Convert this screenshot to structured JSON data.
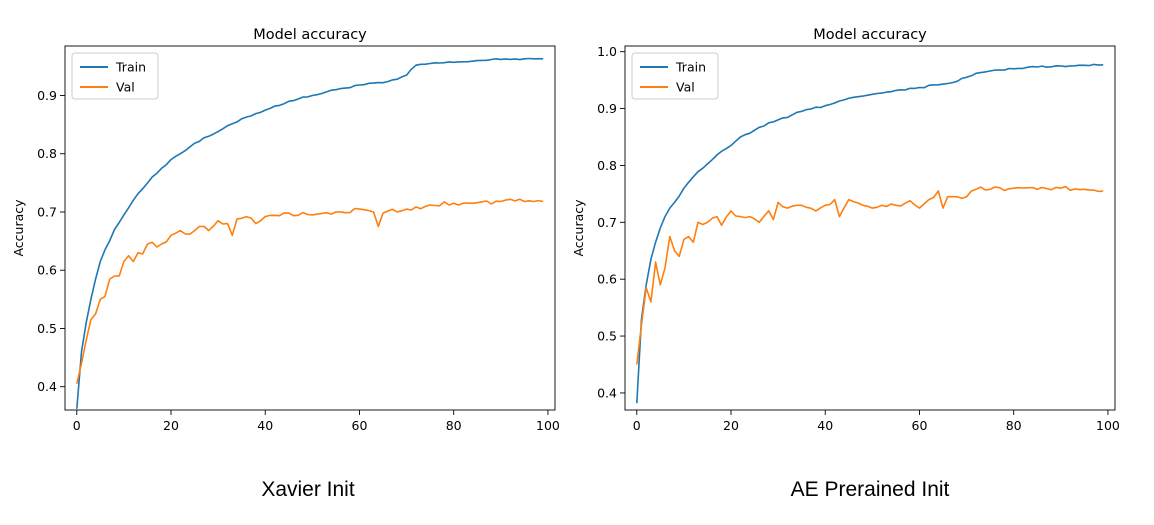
{
  "chart_data": [
    {
      "type": "line",
      "title": "Model accuracy",
      "xlabel": "",
      "ylabel": "Accuracy",
      "xlim": [
        -2.5,
        101.5
      ],
      "ylim": [
        0.36,
        0.985
      ],
      "xticks": [
        0,
        20,
        40,
        60,
        80,
        100
      ],
      "yticks": [
        0.4,
        0.5,
        0.6,
        0.7,
        0.8,
        0.9
      ],
      "grid": false,
      "legend": "top-left",
      "caption": "Xavier Init",
      "series": [
        {
          "name": "Train",
          "color": "#1f77b4",
          "anchors": [
            [
              0,
              0.362
            ],
            [
              1,
              0.46
            ],
            [
              2,
              0.51
            ],
            [
              3,
              0.55
            ],
            [
              4,
              0.585
            ],
            [
              5,
              0.615
            ],
            [
              6,
              0.635
            ],
            [
              8,
              0.67
            ],
            [
              10,
              0.695
            ],
            [
              12,
              0.72
            ],
            [
              14,
              0.74
            ],
            [
              16,
              0.76
            ],
            [
              18,
              0.775
            ],
            [
              20,
              0.79
            ],
            [
              22,
              0.8
            ],
            [
              25,
              0.818
            ],
            [
              28,
              0.83
            ],
            [
              30,
              0.838
            ],
            [
              35,
              0.86
            ],
            [
              40,
              0.875
            ],
            [
              45,
              0.89
            ],
            [
              50,
              0.9
            ],
            [
              55,
              0.91
            ],
            [
              60,
              0.918
            ],
            [
              65,
              0.922
            ],
            [
              68,
              0.928
            ],
            [
              70,
              0.935
            ],
            [
              72,
              0.952
            ],
            [
              75,
              0.955
            ],
            [
              80,
              0.957
            ],
            [
              85,
              0.96
            ],
            [
              90,
              0.962
            ],
            [
              95,
              0.963
            ],
            [
              99,
              0.963
            ]
          ]
        },
        {
          "name": "Val",
          "color": "#ff7f0e",
          "anchors": [
            [
              0,
              0.405
            ],
            [
              1,
              0.44
            ],
            [
              2,
              0.48
            ],
            [
              3,
              0.515
            ],
            [
              4,
              0.525
            ],
            [
              5,
              0.55
            ],
            [
              6,
              0.555
            ],
            [
              7,
              0.585
            ],
            [
              8,
              0.59
            ],
            [
              9,
              0.59
            ],
            [
              10,
              0.615
            ],
            [
              11,
              0.625
            ],
            [
              12,
              0.615
            ],
            [
              13,
              0.63
            ],
            [
              14,
              0.628
            ],
            [
              15,
              0.645
            ],
            [
              16,
              0.648
            ],
            [
              17,
              0.64
            ],
            [
              18,
              0.645
            ],
            [
              20,
              0.66
            ],
            [
              22,
              0.668
            ],
            [
              24,
              0.662
            ],
            [
              26,
              0.675
            ],
            [
              28,
              0.668
            ],
            [
              30,
              0.685
            ],
            [
              32,
              0.68
            ],
            [
              33,
              0.66
            ],
            [
              34,
              0.688
            ],
            [
              36,
              0.692
            ],
            [
              38,
              0.68
            ],
            [
              40,
              0.692
            ],
            [
              45,
              0.698
            ],
            [
              50,
              0.695
            ],
            [
              55,
              0.7
            ],
            [
              60,
              0.705
            ],
            [
              63,
              0.7
            ],
            [
              64,
              0.675
            ],
            [
              65,
              0.698
            ],
            [
              70,
              0.705
            ],
            [
              75,
              0.712
            ],
            [
              80,
              0.715
            ],
            [
              85,
              0.716
            ],
            [
              90,
              0.718
            ],
            [
              95,
              0.718
            ],
            [
              99,
              0.718
            ]
          ]
        }
      ]
    },
    {
      "type": "line",
      "title": "Model accuracy",
      "xlabel": "",
      "ylabel": "Accuracy",
      "xlim": [
        -2.5,
        101.5
      ],
      "ylim": [
        0.37,
        1.01
      ],
      "xticks": [
        0,
        20,
        40,
        60,
        80,
        100
      ],
      "yticks": [
        0.4,
        0.5,
        0.6,
        0.7,
        0.8,
        0.9,
        1.0
      ],
      "ytick_labels": [
        "0.4",
        "0.5",
        "0.6",
        "0.7",
        "0.8",
        "0.9",
        "1.0"
      ],
      "grid": false,
      "legend": "top-left",
      "caption": "AE Prerained Init",
      "series": [
        {
          "name": "Train",
          "color": "#1f77b4",
          "anchors": [
            [
              0,
              0.382
            ],
            [
              1,
              0.53
            ],
            [
              2,
              0.59
            ],
            [
              3,
              0.635
            ],
            [
              4,
              0.665
            ],
            [
              5,
              0.69
            ],
            [
              6,
              0.71
            ],
            [
              7,
              0.725
            ],
            [
              8,
              0.735
            ],
            [
              10,
              0.76
            ],
            [
              12,
              0.78
            ],
            [
              14,
              0.795
            ],
            [
              16,
              0.81
            ],
            [
              18,
              0.825
            ],
            [
              20,
              0.835
            ],
            [
              22,
              0.85
            ],
            [
              25,
              0.862
            ],
            [
              28,
              0.875
            ],
            [
              30,
              0.88
            ],
            [
              35,
              0.895
            ],
            [
              40,
              0.905
            ],
            [
              45,
              0.918
            ],
            [
              50,
              0.925
            ],
            [
              55,
              0.932
            ],
            [
              60,
              0.937
            ],
            [
              65,
              0.943
            ],
            [
              68,
              0.948
            ],
            [
              70,
              0.955
            ],
            [
              72,
              0.962
            ],
            [
              75,
              0.966
            ],
            [
              80,
              0.97
            ],
            [
              85,
              0.973
            ],
            [
              90,
              0.975
            ],
            [
              95,
              0.976
            ],
            [
              99,
              0.977
            ]
          ]
        },
        {
          "name": "Val",
          "color": "#ff7f0e",
          "anchors": [
            [
              0,
              0.45
            ],
            [
              1,
              0.52
            ],
            [
              2,
              0.585
            ],
            [
              3,
              0.56
            ],
            [
              4,
              0.63
            ],
            [
              5,
              0.59
            ],
            [
              6,
              0.62
            ],
            [
              7,
              0.675
            ],
            [
              8,
              0.65
            ],
            [
              9,
              0.64
            ],
            [
              10,
              0.67
            ],
            [
              11,
              0.675
            ],
            [
              12,
              0.665
            ],
            [
              13,
              0.7
            ],
            [
              15,
              0.7
            ],
            [
              17,
              0.71
            ],
            [
              18,
              0.695
            ],
            [
              20,
              0.72
            ],
            [
              22,
              0.71
            ],
            [
              24,
              0.71
            ],
            [
              26,
              0.7
            ],
            [
              28,
              0.72
            ],
            [
              29,
              0.705
            ],
            [
              30,
              0.735
            ],
            [
              32,
              0.725
            ],
            [
              35,
              0.73
            ],
            [
              38,
              0.72
            ],
            [
              40,
              0.73
            ],
            [
              42,
              0.74
            ],
            [
              43,
              0.71
            ],
            [
              45,
              0.74
            ],
            [
              48,
              0.73
            ],
            [
              50,
              0.725
            ],
            [
              52,
              0.73
            ],
            [
              55,
              0.73
            ],
            [
              58,
              0.738
            ],
            [
              60,
              0.725
            ],
            [
              62,
              0.74
            ],
            [
              64,
              0.755
            ],
            [
              65,
              0.725
            ],
            [
              66,
              0.745
            ],
            [
              68,
              0.745
            ],
            [
              70,
              0.745
            ],
            [
              72,
              0.758
            ],
            [
              75,
              0.758
            ],
            [
              80,
              0.76
            ],
            [
              85,
              0.758
            ],
            [
              90,
              0.76
            ],
            [
              95,
              0.758
            ],
            [
              99,
              0.755
            ]
          ]
        }
      ]
    }
  ]
}
